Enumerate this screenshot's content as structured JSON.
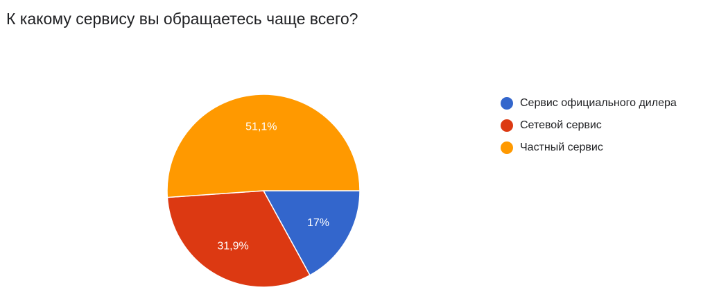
{
  "chart_data": {
    "type": "pie",
    "title": "К какому сервису вы обращаетесь чаще всего?",
    "slices": [
      {
        "label": "Сервис официального дилера",
        "value": 17,
        "display": "17%",
        "color": "#3366cc"
      },
      {
        "label": "Сетевой сервис",
        "value": 31.9,
        "display": "31,9%",
        "color": "#dc3912"
      },
      {
        "label": "Частный сервис",
        "value": 51.1,
        "display": "51,1%",
        "color": "#ff9900"
      }
    ],
    "legend_position": "right"
  }
}
